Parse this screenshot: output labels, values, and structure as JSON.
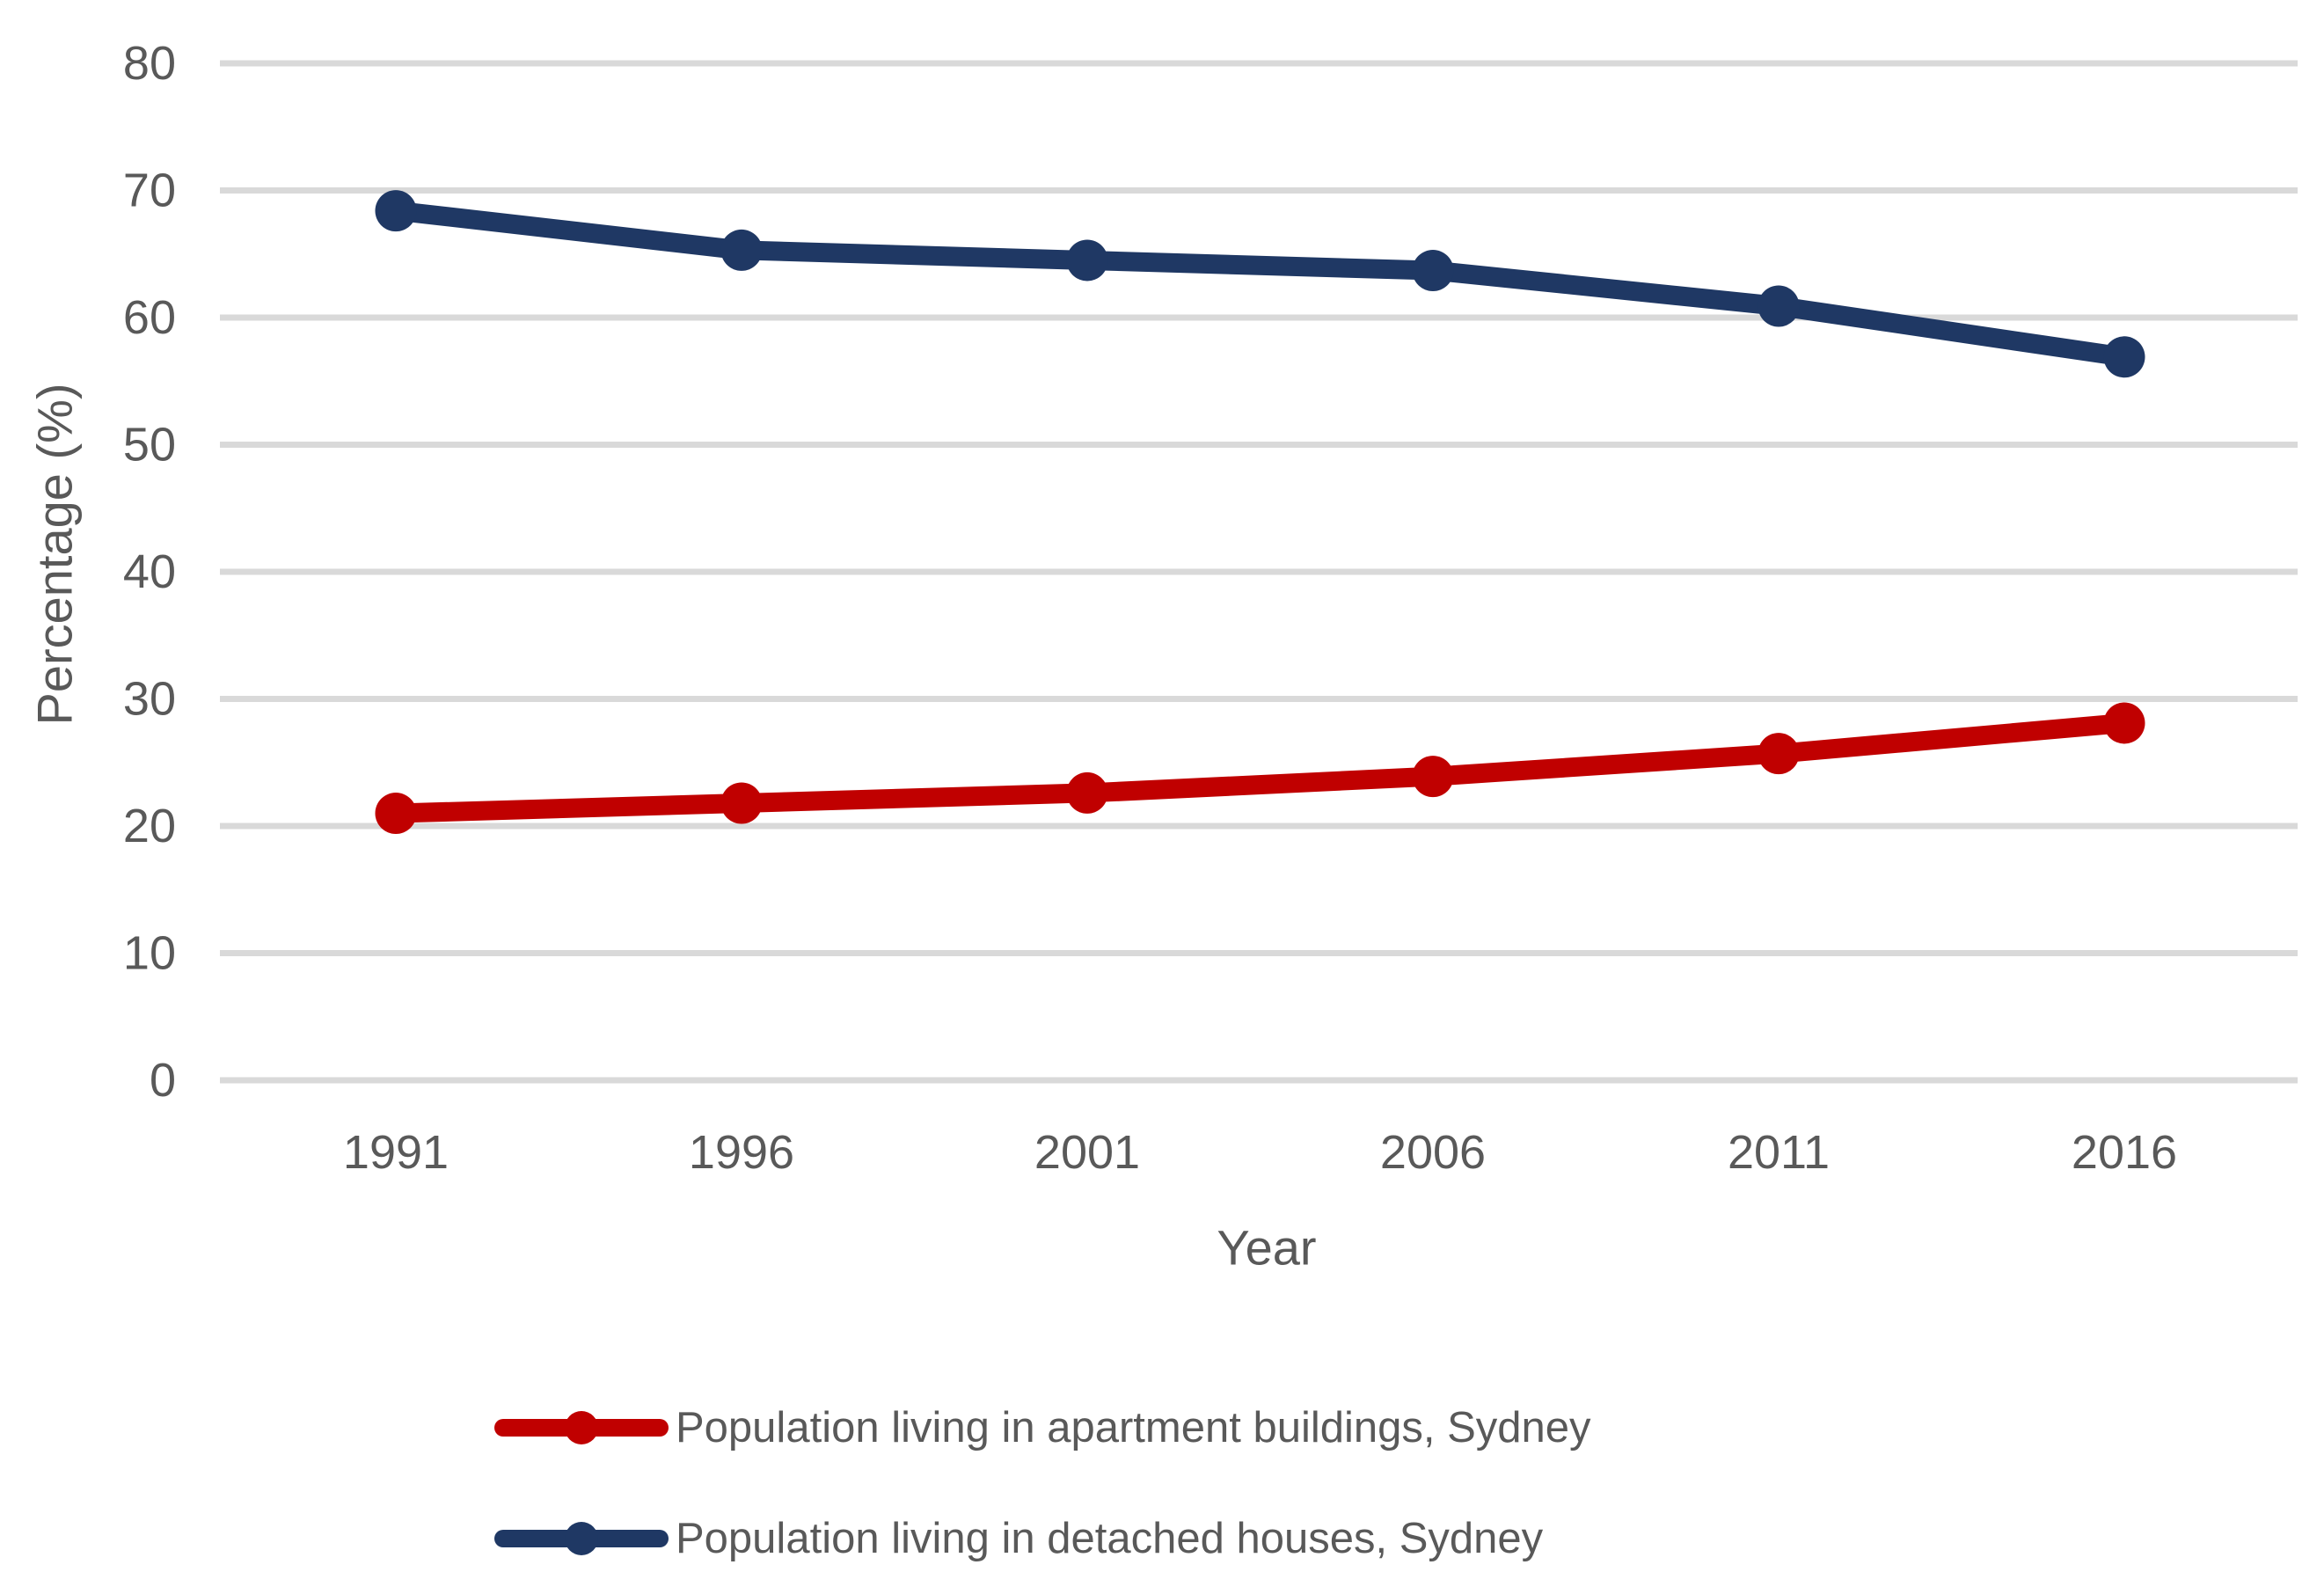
{
  "chart_data": {
    "type": "line",
    "title": "",
    "xlabel": "Year",
    "ylabel": "Percentage (%)",
    "x": [
      "1991",
      "1996",
      "2001",
      "2006",
      "2011",
      "2016"
    ],
    "series": [
      {
        "name": "Population living in apartment buildings, Sydney",
        "color": "#C00000",
        "values": [
          21.0,
          21.8,
          22.6,
          23.9,
          25.7,
          28.1
        ]
      },
      {
        "name": "Population living in detached houses, Sydney",
        "color": "#1F3864",
        "values": [
          68.4,
          65.3,
          64.5,
          63.7,
          60.9,
          56.9
        ]
      }
    ],
    "ylim": [
      0,
      80
    ],
    "yticks": [
      0,
      10,
      20,
      30,
      40,
      50,
      60,
      70,
      80
    ],
    "grid": "horizontal-only",
    "legend_position": "bottom",
    "colors": {
      "gridline": "#D9D9D9",
      "axis_text": "#595959",
      "background": "#FFFFFF"
    }
  }
}
